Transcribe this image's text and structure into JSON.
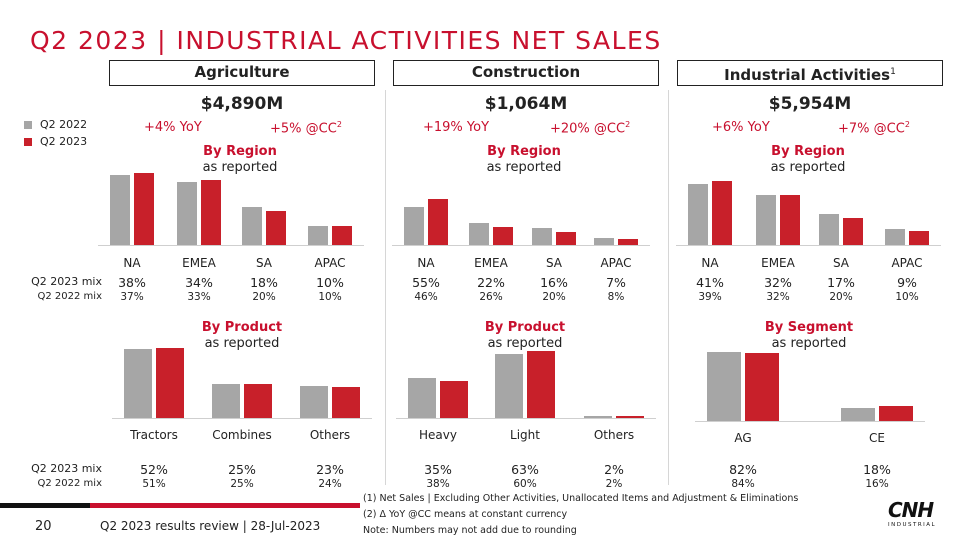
{
  "title": "Q2 2023 | INDUSTRIAL ACTIVITIES NET SALES",
  "colors": {
    "prior": "#a6a6a6",
    "current": "#c8202a",
    "accent": "#c8102e"
  },
  "legend": [
    {
      "label": "Q2 2022",
      "color": "#a6a6a6"
    },
    {
      "label": "Q2 2023",
      "color": "#c8202a"
    }
  ],
  "row_labels": {
    "mix_2023": "Q2 2023 mix",
    "mix_2022": "Q2 2022 mix"
  },
  "segments": [
    {
      "name": "Agriculture",
      "sup": "",
      "total": "$4,890M",
      "yoy": "+4% YoY",
      "cc": "+5% @CC",
      "cc_sup": "2",
      "top": {
        "bold": "By Region",
        "normal": "as reported"
      },
      "bottom": {
        "bold": "By Product",
        "normal": "as reported"
      }
    },
    {
      "name": "Construction",
      "sup": "",
      "total": "$1,064M",
      "yoy": "+19% YoY",
      "cc": "+20% @CC",
      "cc_sup": "2",
      "top": {
        "bold": "By Region",
        "normal": "as reported"
      },
      "bottom": {
        "bold": "By Product",
        "normal": "as reported"
      }
    },
    {
      "name": "Industrial Activities",
      "sup": "1",
      "total": "$5,954M",
      "yoy": "+6% YoY",
      "cc": "+7% @CC",
      "cc_sup": "2",
      "top": {
        "bold": "By Region",
        "normal": "as reported"
      },
      "bottom": {
        "bold": "By Segment",
        "normal": "as reported"
      }
    }
  ],
  "chart_data": [
    {
      "type": "bar",
      "panel": "Agriculture by region",
      "categories": [
        "NA",
        "EMEA",
        "SA",
        "APAC"
      ],
      "series": [
        {
          "name": "Q2 2022",
          "values": [
            37,
            33,
            20,
            10
          ]
        },
        {
          "name": "Q2 2023",
          "values": [
            38,
            34,
            18,
            10
          ]
        }
      ],
      "mix_2023": [
        "38%",
        "34%",
        "18%",
        "10%"
      ],
      "mix_2022": [
        "37%",
        "33%",
        "20%",
        "10%"
      ]
    },
    {
      "type": "bar",
      "panel": "Construction by region",
      "categories": [
        "NA",
        "EMEA",
        "SA",
        "APAC"
      ],
      "series": [
        {
          "name": "Q2 2022",
          "values": [
            46,
            26,
            20,
            8
          ]
        },
        {
          "name": "Q2 2023",
          "values": [
            55,
            22,
            16,
            7
          ]
        }
      ],
      "mix_2023": [
        "55%",
        "22%",
        "16%",
        "7%"
      ],
      "mix_2022": [
        "46%",
        "26%",
        "20%",
        "8%"
      ]
    },
    {
      "type": "bar",
      "panel": "Industrial Activities by region",
      "categories": [
        "NA",
        "EMEA",
        "SA",
        "APAC"
      ],
      "series": [
        {
          "name": "Q2 2022",
          "values": [
            39,
            32,
            20,
            10
          ]
        },
        {
          "name": "Q2 2023",
          "values": [
            41,
            32,
            17,
            9
          ]
        }
      ],
      "mix_2023": [
        "41%",
        "32%",
        "17%",
        "9%"
      ],
      "mix_2022": [
        "39%",
        "32%",
        "20%",
        "10%"
      ]
    },
    {
      "type": "bar",
      "panel": "Agriculture by product",
      "categories": [
        "Tractors",
        "Combines",
        "Others"
      ],
      "series": [
        {
          "name": "Q2 2022",
          "values": [
            51,
            25,
            24
          ]
        },
        {
          "name": "Q2 2023",
          "values": [
            52,
            25,
            23
          ]
        }
      ],
      "mix_2023": [
        "52%",
        "25%",
        "23%"
      ],
      "mix_2022": [
        "51%",
        "25%",
        "24%"
      ]
    },
    {
      "type": "bar",
      "panel": "Construction by product",
      "categories": [
        "Heavy",
        "Light",
        "Others"
      ],
      "series": [
        {
          "name": "Q2 2022",
          "values": [
            38,
            60,
            2
          ]
        },
        {
          "name": "Q2 2023",
          "values": [
            35,
            63,
            2
          ]
        }
      ],
      "mix_2023": [
        "35%",
        "63%",
        "2%"
      ],
      "mix_2022": [
        "38%",
        "60%",
        "2%"
      ]
    },
    {
      "type": "bar",
      "panel": "Industrial Activities by segment",
      "categories": [
        "AG",
        "CE"
      ],
      "series": [
        {
          "name": "Q2 2022",
          "values": [
            84,
            16
          ]
        },
        {
          "name": "Q2 2023",
          "values": [
            82,
            18
          ]
        }
      ],
      "mix_2023": [
        "82%",
        "18%"
      ],
      "mix_2022": [
        "84%",
        "16%"
      ]
    }
  ],
  "footer": {
    "page": "20",
    "text": "Q2 2023 results review | 28-Jul-2023",
    "notes": [
      "(1) Net Sales | Excluding Other Activities, Unallocated Items and Adjustment & Eliminations",
      "(2) Δ YoY @CC means at constant currency",
      "Note: Numbers may not add due to rounding"
    ]
  },
  "logo": {
    "main": "CNH",
    "sub": "INDUSTRIAL"
  }
}
